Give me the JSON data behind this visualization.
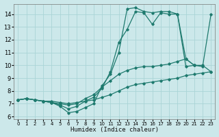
{
  "xlabel": "Humidex (Indice chaleur)",
  "xlim": [
    -0.5,
    23.5
  ],
  "ylim": [
    5.8,
    14.8
  ],
  "xticks": [
    0,
    1,
    2,
    3,
    4,
    5,
    6,
    7,
    8,
    9,
    10,
    11,
    12,
    13,
    14,
    15,
    16,
    17,
    18,
    19,
    20,
    21,
    22,
    23
  ],
  "yticks": [
    6,
    7,
    8,
    9,
    10,
    11,
    12,
    13,
    14
  ],
  "bg_color": "#cce8ea",
  "line_color": "#1e7a6e",
  "grid_color": "#aad4d6",
  "series": [
    {
      "x": [
        0,
        1,
        2,
        3,
        4,
        5,
        6,
        7,
        8,
        9,
        10,
        11,
        12,
        13,
        14,
        15,
        16,
        17,
        18,
        19,
        20,
        21
      ],
      "y": [
        7.3,
        7.4,
        7.3,
        7.2,
        7.1,
        6.8,
        6.3,
        6.4,
        6.7,
        7.0,
        8.4,
        9.3,
        11.0,
        14.4,
        14.5,
        14.2,
        14.1,
        14.2,
        14.2,
        14.0,
        9.9,
        10.0
      ]
    },
    {
      "x": [
        0,
        1,
        2,
        3,
        4,
        5,
        6,
        7,
        8,
        9,
        10,
        11,
        12,
        13,
        14,
        15,
        16,
        17,
        18,
        19,
        20,
        21,
        22,
        23
      ],
      "y": [
        7.3,
        7.4,
        7.3,
        7.2,
        7.1,
        6.9,
        6.6,
        6.8,
        7.2,
        7.5,
        8.2,
        9.5,
        11.8,
        12.8,
        14.2,
        14.1,
        13.2,
        14.1,
        14.0,
        14.0,
        10.5,
        10.0,
        9.9,
        14.0
      ]
    },
    {
      "x": [
        0,
        1,
        2,
        3,
        4,
        5,
        6,
        7,
        8,
        9,
        10,
        11,
        12,
        13,
        14,
        15,
        16,
        17,
        18,
        19,
        20,
        21,
        22,
        23
      ],
      "y": [
        7.3,
        7.4,
        7.3,
        7.2,
        7.2,
        7.1,
        7.0,
        7.1,
        7.2,
        7.3,
        7.5,
        7.7,
        8.0,
        8.3,
        8.5,
        8.6,
        8.7,
        8.8,
        8.9,
        9.0,
        9.2,
        9.3,
        9.4,
        9.5
      ]
    },
    {
      "x": [
        0,
        1,
        2,
        3,
        4,
        5,
        6,
        7,
        8,
        9,
        10,
        11,
        12,
        13,
        14,
        15,
        16,
        17,
        18,
        19,
        20,
        21,
        22,
        23
      ],
      "y": [
        7.3,
        7.4,
        7.3,
        7.2,
        7.1,
        7.0,
        6.9,
        7.0,
        7.4,
        7.7,
        8.3,
        8.8,
        9.3,
        9.6,
        9.8,
        9.9,
        9.9,
        10.0,
        10.1,
        10.3,
        10.5,
        10.0,
        10.0,
        9.5
      ]
    }
  ]
}
